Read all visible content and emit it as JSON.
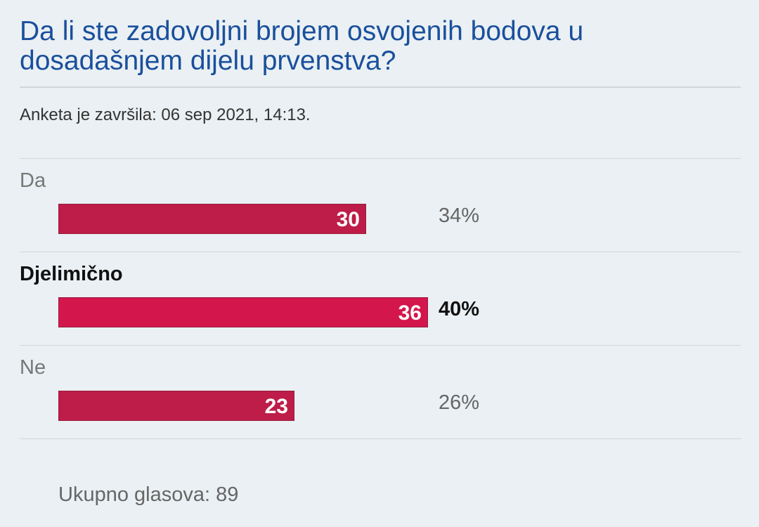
{
  "poll": {
    "question": "Da li ste zadovoljni brojem osvojenih bodova u dosadašnjem dijelu prvenstva?",
    "ended_text": "Anketa je završila: 06 sep 2021, 14:13.",
    "total_text": "Ukupno glasova: 89"
  },
  "chart_data": {
    "type": "bar",
    "orientation": "horizontal",
    "categories": [
      "Da",
      "Djelimično",
      "Ne"
    ],
    "values": [
      30,
      36,
      23
    ],
    "percent_labels": [
      "34%",
      "40%",
      "26%"
    ],
    "highlighted_category": "Djelimično",
    "total": 89,
    "colors": {
      "bar": "#bd1d48",
      "bar_highlight": "#d3174c",
      "bar_border": "#9a1a3c"
    }
  }
}
